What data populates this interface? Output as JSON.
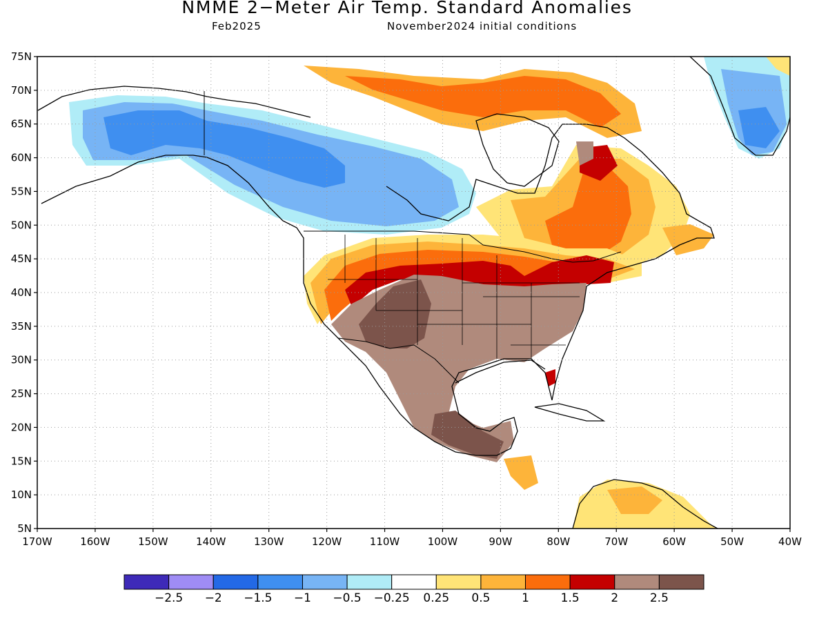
{
  "title": "NMME 2−Meter Air Temp. Standard Anomalies",
  "valid_month": "Feb2025",
  "initial_conditions": "November2024 initial conditions",
  "lat_labels": [
    "75N",
    "70N",
    "65N",
    "60N",
    "55N",
    "50N",
    "45N",
    "40N",
    "35N",
    "30N",
    "25N",
    "20N",
    "15N",
    "10N",
    "5N"
  ],
  "lon_labels": [
    "170W",
    "160W",
    "150W",
    "140W",
    "130W",
    "120W",
    "110W",
    "100W",
    "90W",
    "80W",
    "70W",
    "60W",
    "50W",
    "40W"
  ],
  "colorbar": {
    "colors": [
      "#3e2ab8",
      "#9f8cf5",
      "#2369e6",
      "#3f8ff0",
      "#77b4f5",
      "#b0ecf7",
      "#ffffff",
      "#ffe477",
      "#fdb43a",
      "#fb6d0c",
      "#c40000",
      "#b08a7c",
      "#7c544b"
    ],
    "labels": [
      "−2.5",
      "−2",
      "−1.5",
      "−1",
      "−0.5",
      "−0.25",
      "0.25",
      "0.5",
      "1",
      "1.5",
      "2",
      "2.5"
    ]
  },
  "map": {
    "domain": {
      "lon_min": -170,
      "lon_max": -40,
      "lat_min": 5,
      "lat_max": 75
    },
    "gridlines": "dotted",
    "anomaly_regions": [
      {
        "name": "alaska-western-canada-below-normal",
        "category": "-1 to -0.5",
        "color": "#77b4f5"
      },
      {
        "name": "alaska-below-normal-core",
        "category": "-1.5 to -1",
        "color": "#3f8ff0"
      },
      {
        "name": "greenland-below-normal",
        "category": "-1.5 to -1",
        "color": "#3f8ff0"
      },
      {
        "name": "great-lakes-northeast-above-normal",
        "category": "1.5 to 2",
        "color": "#c40000"
      },
      {
        "name": "quebec-above-normal",
        "category": "1 to 1.5",
        "color": "#fb6d0c"
      },
      {
        "name": "southern-us-mexico-above-normal",
        "category": "2 to 2.5",
        "color": "#b08a7c"
      },
      {
        "name": "southwest-us-above-normal-core",
        "category": ">2.5",
        "color": "#7c544b"
      }
    ]
  }
}
